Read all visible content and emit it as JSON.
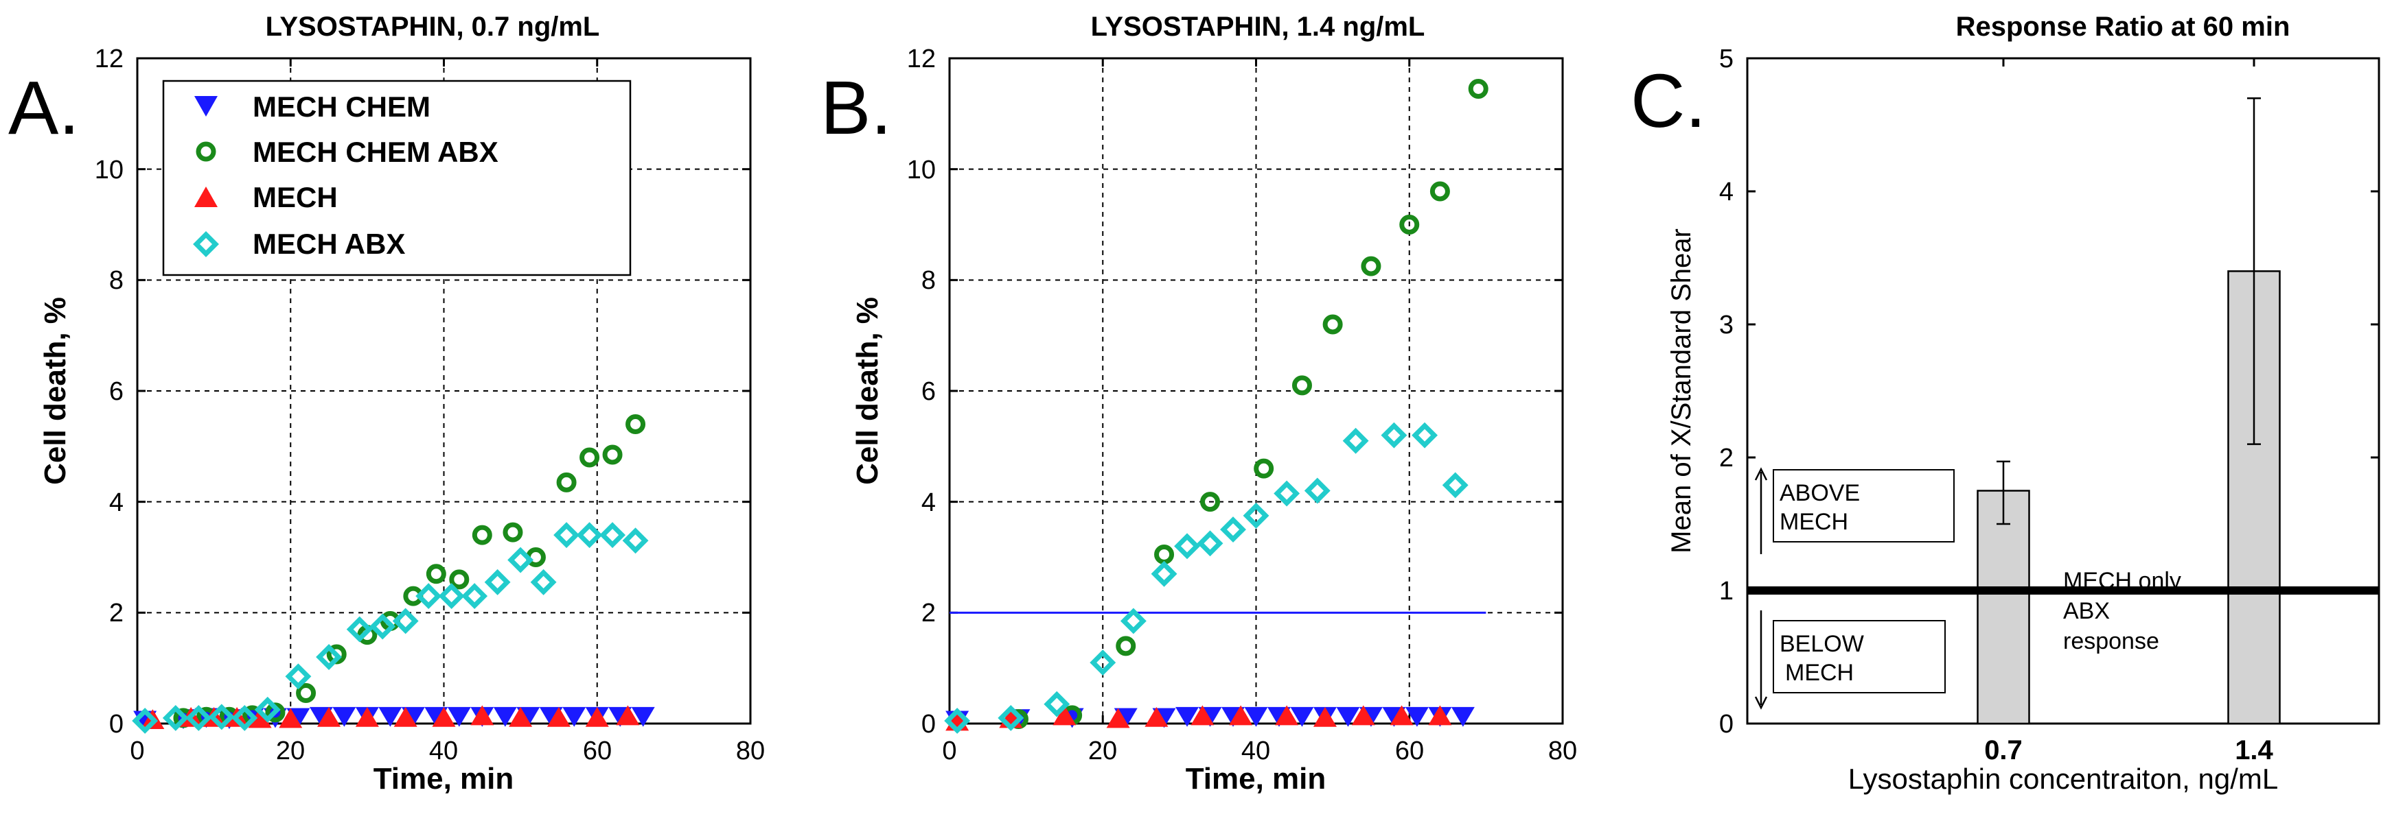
{
  "chart_data": [
    {
      "panel_label": "A.",
      "type": "scatter",
      "title": "LYSOSTAPHIN, 0.7 ng/mL",
      "xlabel": "Time, min",
      "ylabel": "Cell death, %",
      "xlim": [
        0,
        80
      ],
      "ylim": [
        0,
        12
      ],
      "xticks": [
        "0",
        "20",
        "40",
        "60",
        "80"
      ],
      "yticks": [
        "0",
        "2",
        "4",
        "6",
        "8",
        "10",
        "12"
      ],
      "grid": true,
      "legend_position": "top-left",
      "series": [
        {
          "name": "MECH CHEM",
          "marker": "triangle-down",
          "color": "#1a1aff",
          "x": [
            1,
            6,
            9,
            12,
            15,
            18,
            21,
            24,
            27,
            30,
            33,
            36,
            39,
            42,
            45,
            48,
            51,
            54,
            57,
            60,
            63,
            66
          ],
          "y": [
            0.05,
            0.08,
            0.1,
            0.08,
            0.1,
            0.1,
            0.1,
            0.12,
            0.12,
            0.12,
            0.12,
            0.12,
            0.12,
            0.12,
            0.12,
            0.12,
            0.12,
            0.12,
            0.12,
            0.12,
            0.12,
            0.12
          ]
        },
        {
          "name": "MECH CHEM ABX",
          "marker": "circle-open",
          "color": "#1a8a1a",
          "x": [
            6,
            9,
            12,
            15,
            18,
            22,
            26,
            30,
            33,
            36,
            39,
            42,
            45,
            49,
            52,
            56,
            59,
            62,
            65
          ],
          "y": [
            0.1,
            0.12,
            0.12,
            0.15,
            0.2,
            0.55,
            1.25,
            1.6,
            1.85,
            2.3,
            2.7,
            2.6,
            3.4,
            3.45,
            3.0,
            4.35,
            4.8,
            4.85,
            5.4
          ]
        },
        {
          "name": "MECH",
          "marker": "triangle-up",
          "color": "#ff1a1a",
          "x": [
            2,
            7,
            10,
            13,
            16,
            20,
            25,
            30,
            35,
            40,
            45,
            50,
            55,
            60,
            64
          ],
          "y": [
            0.08,
            0.12,
            0.12,
            0.12,
            0.1,
            0.1,
            0.12,
            0.12,
            0.12,
            0.12,
            0.15,
            0.12,
            0.12,
            0.12,
            0.15
          ]
        },
        {
          "name": "MECH ABX",
          "marker": "diamond-open",
          "color": "#22cccc",
          "x": [
            1,
            5,
            8,
            11,
            14,
            17,
            21,
            25,
            29,
            32,
            35,
            38,
            41,
            44,
            47,
            50,
            53,
            56,
            59,
            62,
            65
          ],
          "y": [
            0.05,
            0.1,
            0.1,
            0.12,
            0.1,
            0.25,
            0.85,
            1.2,
            1.7,
            1.75,
            1.85,
            2.3,
            2.3,
            2.3,
            2.55,
            2.95,
            2.55,
            3.4,
            3.4,
            3.4,
            3.3
          ]
        }
      ]
    },
    {
      "panel_label": "B.",
      "type": "scatter",
      "title": "LYSOSTAPHIN, 1.4 ng/mL",
      "xlabel": "Time, min",
      "ylabel": "Cell death, %",
      "xlim": [
        0,
        80
      ],
      "ylim": [
        0,
        12
      ],
      "xticks": [
        "0",
        "20",
        "40",
        "60",
        "80"
      ],
      "yticks": [
        "0",
        "2",
        "4",
        "6",
        "8",
        "10",
        "12"
      ],
      "grid": true,
      "reference_line": {
        "y": 2,
        "x_start": 0,
        "x_end": 70,
        "color": "#1a1aff"
      },
      "series": [
        {
          "name": "MECH CHEM",
          "marker": "triangle-down",
          "color": "#1a1aff",
          "x": [
            1,
            9,
            16,
            23,
            28,
            31,
            34,
            37,
            40,
            43,
            46,
            49,
            52,
            55,
            58,
            61,
            64,
            67
          ],
          "y": [
            0.05,
            0.08,
            0.1,
            0.1,
            0.1,
            0.12,
            0.12,
            0.12,
            0.12,
            0.12,
            0.12,
            0.12,
            0.12,
            0.12,
            0.12,
            0.12,
            0.12,
            0.12
          ]
        },
        {
          "name": "MECH CHEM ABX",
          "marker": "circle-open",
          "color": "#1a8a1a",
          "x": [
            9,
            16,
            23,
            28,
            34,
            41,
            46,
            50,
            55,
            60,
            64,
            69
          ],
          "y": [
            0.08,
            0.15,
            1.4,
            3.05,
            4.0,
            4.6,
            6.1,
            7.2,
            8.25,
            9.0,
            9.6,
            11.45
          ]
        },
        {
          "name": "MECH",
          "marker": "triangle-up",
          "color": "#ff1a1a",
          "x": [
            1,
            8,
            15,
            22,
            27,
            33,
            38,
            44,
            49,
            54,
            59,
            64
          ],
          "y": [
            0.05,
            0.1,
            0.15,
            0.1,
            0.12,
            0.15,
            0.15,
            0.15,
            0.12,
            0.15,
            0.15,
            0.15
          ]
        },
        {
          "name": "MECH ABX",
          "marker": "diamond-open",
          "color": "#22cccc",
          "x": [
            1,
            8,
            14,
            20,
            24,
            28,
            31,
            34,
            37,
            40,
            44,
            48,
            53,
            58,
            62,
            66
          ],
          "y": [
            0.05,
            0.1,
            0.35,
            1.1,
            1.85,
            2.7,
            3.2,
            3.25,
            3.5,
            3.75,
            4.15,
            4.2,
            5.1,
            5.2,
            5.2,
            4.3
          ]
        }
      ]
    },
    {
      "panel_label": "C.",
      "type": "bar",
      "title": "Response Ratio at 60 min",
      "xlabel": "Lysostaphin concentraiton, ng/mL",
      "ylabel": "Mean of X/Standard Shear",
      "categories": [
        "0.7",
        "1.4"
      ],
      "values": [
        1.75,
        3.4
      ],
      "error_low": [
        1.5,
        2.1
      ],
      "error_high": [
        1.97,
        4.7
      ],
      "ylim": [
        0,
        5
      ],
      "yticks": [
        "0",
        "1",
        "2",
        "3",
        "4",
        "5"
      ],
      "bar_color": "#d3d3d3",
      "reference_line": {
        "y": 1,
        "label_lines": [
          "MECH only",
          "ABX",
          "response"
        ]
      },
      "annotations": {
        "above": [
          "ABOVE",
          "MECH"
        ],
        "below": [
          "BELOW",
          "MECH"
        ]
      }
    }
  ]
}
